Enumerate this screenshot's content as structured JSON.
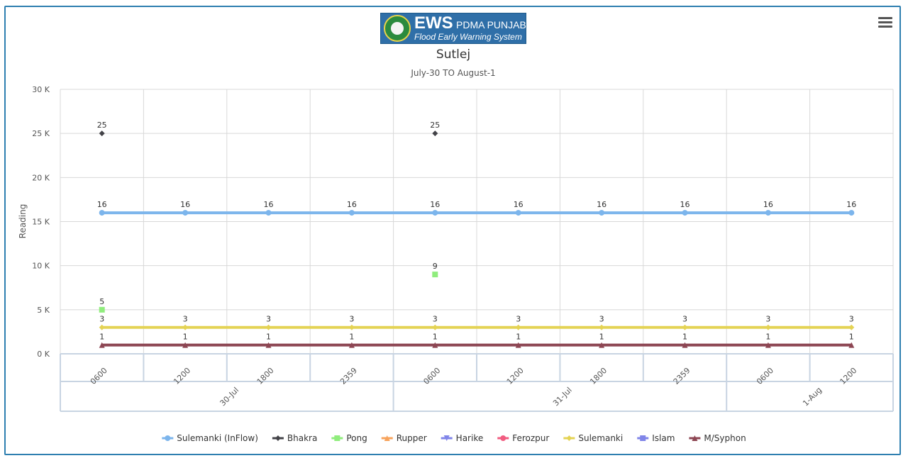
{
  "logo": {
    "brand": "EWS",
    "org": "PDMA PUNJAB",
    "tagline": "Flood Early Warning System"
  },
  "menu": {
    "icon": "hamburger-menu-icon"
  },
  "chart_data": {
    "type": "line",
    "title": "Sutlej",
    "subtitle": "July-30 TO August-1",
    "xlabel": "",
    "ylabel": "Reading",
    "ylim": [
      0,
      30000
    ],
    "yticks": [
      0,
      5000,
      10000,
      15000,
      20000,
      25000,
      30000
    ],
    "ytick_labels": [
      "0 K",
      "5 K",
      "10 K",
      "15 K",
      "20 K",
      "25 K",
      "30 K"
    ],
    "grid": true,
    "legend_position": "bottom",
    "categories": [
      "0600",
      "1200",
      "1800",
      "2359",
      "0600",
      "1200",
      "1800",
      "2359",
      "0600",
      "1200"
    ],
    "category_groups": [
      {
        "label": "30-Jul",
        "span": 4
      },
      {
        "label": "31-Jul",
        "span": 4
      },
      {
        "label": "1-Aug",
        "span": 2
      }
    ],
    "series": [
      {
        "name": "Sulemanki (InFlow)",
        "color": "#7cb5ec",
        "marker": "circle",
        "line": true,
        "values": [
          16000,
          16000,
          16000,
          16000,
          16000,
          16000,
          16000,
          16000,
          16000,
          16000
        ],
        "labels": [
          "16",
          "16",
          "16",
          "16",
          "16",
          "16",
          "16",
          "16",
          "16",
          "16"
        ]
      },
      {
        "name": "Bhakra",
        "color": "#434348",
        "marker": "diamond",
        "line": true,
        "values": [
          25000,
          null,
          null,
          null,
          25000,
          null,
          null,
          null,
          null,
          null
        ],
        "labels": [
          "25",
          "",
          "",
          "",
          "25",
          "",
          "",
          "",
          "",
          ""
        ]
      },
      {
        "name": "Pong",
        "color": "#90ed7d",
        "marker": "square",
        "line": true,
        "values": [
          5000,
          null,
          null,
          null,
          9000,
          null,
          null,
          null,
          null,
          null
        ],
        "labels": [
          "5",
          "",
          "",
          "",
          "9",
          "",
          "",
          "",
          "",
          ""
        ]
      },
      {
        "name": "Rupper",
        "color": "#f7a35c",
        "marker": "triangle",
        "line": true,
        "values": [
          null,
          null,
          null,
          null,
          null,
          null,
          null,
          null,
          null,
          null
        ],
        "labels": [
          "",
          "",
          "",
          "",
          "",
          "",
          "",
          "",
          "",
          ""
        ]
      },
      {
        "name": "Harike",
        "color": "#8085e9",
        "marker": "triangle-down",
        "line": true,
        "values": [
          null,
          null,
          null,
          null,
          null,
          null,
          null,
          null,
          null,
          null
        ],
        "labels": [
          "",
          "",
          "",
          "",
          "",
          "",
          "",
          "",
          "",
          ""
        ]
      },
      {
        "name": "Ferozpur",
        "color": "#f15c80",
        "marker": "circle",
        "line": true,
        "values": [
          null,
          null,
          null,
          null,
          null,
          null,
          null,
          null,
          null,
          null
        ],
        "labels": [
          "",
          "",
          "",
          "",
          "",
          "",
          "",
          "",
          "",
          ""
        ]
      },
      {
        "name": "Sulemanki",
        "color": "#e4d354",
        "marker": "diamond",
        "line": true,
        "values": [
          3000,
          3000,
          3000,
          3000,
          3000,
          3000,
          3000,
          3000,
          3000,
          3000
        ],
        "labels": [
          "3",
          "3",
          "3",
          "3",
          "3",
          "3",
          "3",
          "3",
          "3",
          "3"
        ]
      },
      {
        "name": "Islam",
        "color": "#8085e8",
        "marker": "square",
        "line": true,
        "values": [
          null,
          null,
          null,
          null,
          null,
          null,
          null,
          null,
          null,
          null
        ],
        "labels": [
          "",
          "",
          "",
          "",
          "",
          "",
          "",
          "",
          "",
          ""
        ]
      },
      {
        "name": "M/Syphon",
        "color": "#8d4653",
        "marker": "triangle",
        "line": true,
        "values": [
          1000,
          1000,
          1000,
          1000,
          1000,
          1000,
          1000,
          1000,
          1000,
          1000
        ],
        "labels": [
          "1",
          "1",
          "1",
          "1",
          "1",
          "1",
          "1",
          "1",
          "1",
          "1"
        ]
      }
    ]
  }
}
